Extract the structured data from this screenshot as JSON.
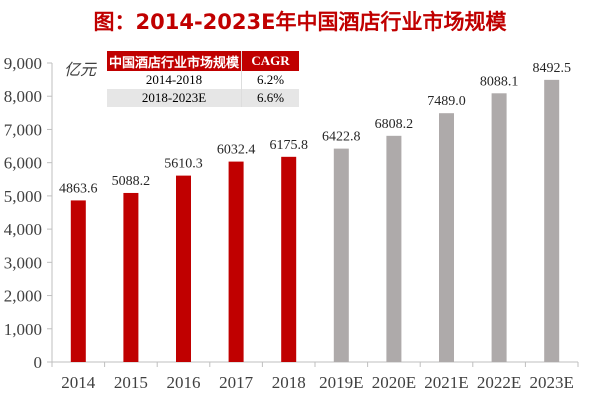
{
  "chart_data": {
    "type": "bar",
    "title": "图：2014-2023E年中国酒店行业市场规模",
    "unit_label": "亿元",
    "categories": [
      "2014",
      "2015",
      "2016",
      "2017",
      "2018",
      "2019E",
      "2020E",
      "2021E",
      "2022E",
      "2023E"
    ],
    "values": [
      4863.6,
      5088.2,
      5610.3,
      6032.4,
      6175.8,
      6422.8,
      6808.2,
      7489.0,
      8088.1,
      8492.5
    ],
    "value_labels": [
      "4863.6",
      "5088.2",
      "5610.3",
      "6032.4",
      "6175.8",
      "6422.8",
      "6808.2",
      "7489.0",
      "8088.1",
      "8492.5"
    ],
    "ylim": [
      0,
      9000
    ],
    "yticks": [
      "0",
      "1,000",
      "2,000",
      "3,000",
      "4,000",
      "5,000",
      "6,000",
      "7,000",
      "8,000",
      "9,000"
    ],
    "grid": false,
    "colors": {
      "actual": "#c00000",
      "forecast": "#aeaaaa",
      "title": "#c00000"
    },
    "table": {
      "header": [
        "中国酒店行业市场规模",
        "CAGR"
      ],
      "rows": [
        [
          "2014-2018",
          "6.2%"
        ],
        [
          "2018-2023E",
          "6.6%"
        ]
      ]
    }
  }
}
